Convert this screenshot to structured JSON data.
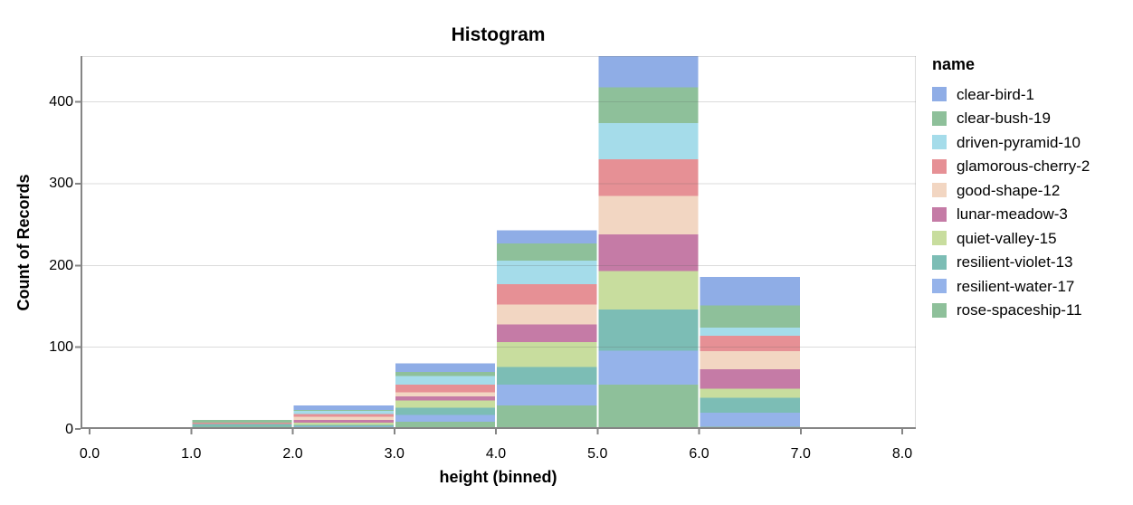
{
  "chart_data": {
    "type": "bar",
    "subtype": "stacked-histogram",
    "title": "Histogram",
    "xlabel": "height (binned)",
    "ylabel": "Count of Records",
    "legend_title": "name",
    "legend_position": "right",
    "grid": true,
    "bin_edges": [
      0,
      1,
      2,
      3,
      4,
      5,
      6,
      7,
      8
    ],
    "x_tick_labels": [
      "0.0",
      "1.0",
      "2.0",
      "3.0",
      "4.0",
      "5.0",
      "6.0",
      "7.0",
      "8.0"
    ],
    "y_ticks": [
      0,
      100,
      200,
      300,
      400
    ],
    "ylim": [
      0,
      456
    ],
    "stack_order": "first series on top, last series at bottom",
    "series": [
      {
        "name": "clear-bird-1",
        "color": "#8fade6",
        "values": [
          0,
          0,
          6,
          10,
          16,
          38,
          35,
          1
        ]
      },
      {
        "name": "clear-bush-19",
        "color": "#8ec09a",
        "values": [
          0,
          3,
          1,
          5,
          21,
          44,
          27,
          0
        ]
      },
      {
        "name": "driven-pyramid-10",
        "color": "#a5dcea",
        "values": [
          0,
          0,
          4,
          11,
          29,
          44,
          10,
          0
        ]
      },
      {
        "name": "glamorous-cherry-2",
        "color": "#e69095",
        "values": [
          0,
          2,
          3,
          9,
          25,
          45,
          19,
          0
        ]
      },
      {
        "name": "good-shape-12",
        "color": "#f2d6c2",
        "values": [
          0,
          0,
          4,
          5,
          24,
          47,
          22,
          0
        ]
      },
      {
        "name": "lunar-meadow-3",
        "color": "#c57ba6",
        "values": [
          0,
          0,
          3,
          5,
          22,
          45,
          24,
          1
        ]
      },
      {
        "name": "quiet-valley-15",
        "color": "#c8dd9e",
        "values": [
          2,
          0,
          3,
          9,
          30,
          47,
          11,
          0
        ]
      },
      {
        "name": "resilient-violet-13",
        "color": "#7cbdb5",
        "values": [
          0,
          3,
          2,
          9,
          22,
          50,
          18,
          0
        ]
      },
      {
        "name": "resilient-water-17",
        "color": "#95b3ea",
        "values": [
          0,
          0,
          2,
          8,
          25,
          42,
          17,
          0
        ]
      },
      {
        "name": "rose-spaceship-11",
        "color": "#8ec09a",
        "values": [
          0,
          3,
          1,
          9,
          29,
          54,
          3,
          0
        ]
      }
    ],
    "axis_color": "#858585",
    "grid_color": "#dadada"
  }
}
